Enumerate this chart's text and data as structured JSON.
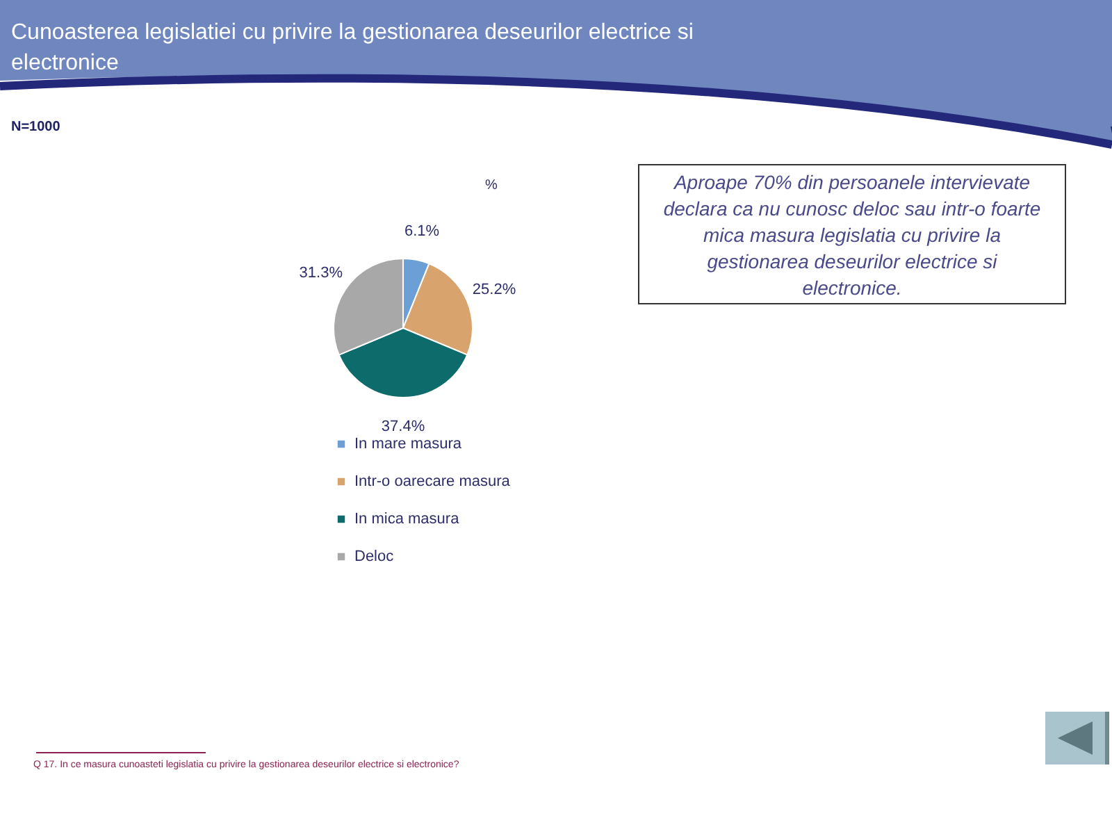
{
  "chart_data": {
    "type": "pie",
    "title": "Cunoasterea legislatiei cu privire la gestionarea deseurilor electrice si electronice",
    "subtitle": "N=1000",
    "categories": [
      "In mare masura",
      "Intr-o oarecare masura",
      "In mica masura",
      "Deloc"
    ],
    "values": [
      6.1,
      25.2,
      37.4,
      31.3
    ],
    "colors": [
      "#6b9fd6",
      "#d9a36e",
      "#0e6b6b",
      "#a8a8a8"
    ],
    "value_labels": [
      "6.1%",
      "25.2%",
      "37.4%",
      "31.3%"
    ],
    "legend": "bottom",
    "annotations": [
      "%",
      "Aproape 70% din persoanele intervievate declara ca nu cunosc deloc sau intr-o foarte mica masura legislatia cu privire la gestionarea deseurilor electrice si electronice.",
      "Q 17. In ce masura cunoasteti legislatia cu privire la gestionarea deseurilor electrice si electronice?"
    ]
  }
}
